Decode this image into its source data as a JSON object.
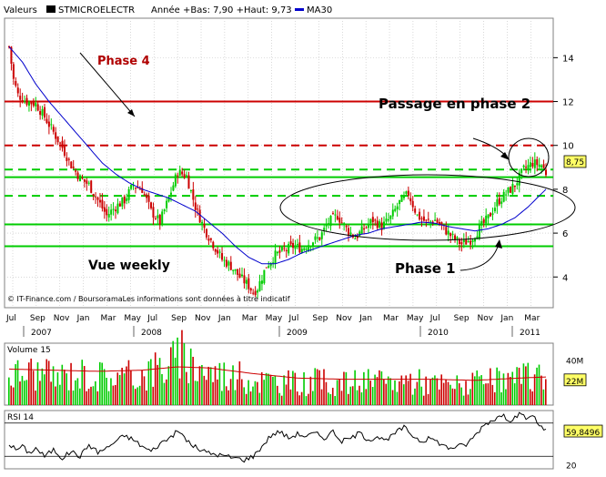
{
  "header": {
    "prefix": "Valeurs",
    "ticker": "STMICROELECTR",
    "stats": "Année +Bas: 7,90 +Haut: 9,73",
    "ma_label": "MA30"
  },
  "footer_note": "© IT-Finance.com / BoursoramaLes informations sont données à titre indicatif",
  "annotations": {
    "phase4": "Phase 4",
    "passage": "Passage en phase 2",
    "vue": "Vue weekly",
    "phase1": "Phase 1"
  },
  "last_price_label": "8,75",
  "colors": {
    "up": "#00cc00",
    "down": "#cc0000",
    "ma": "#0000cc",
    "frame": "#000000",
    "grid": "#c0c0c0",
    "background": "#ffffff"
  },
  "chart_data": [
    {
      "type": "candlestick",
      "title": "STMICROELECTR",
      "ylim": [
        2.6,
        15.8
      ],
      "y_ticks": [
        4,
        6,
        8,
        10,
        12,
        14
      ],
      "y_tick_labels": [
        "4",
        "6",
        "8",
        "10",
        "12",
        "14"
      ],
      "month_labels": [
        "Jul",
        "Sep",
        "Nov",
        "Jan",
        "Mar",
        "May",
        "Jul",
        "Sep",
        "Nov",
        "Jan",
        "Mar",
        "May",
        "Jul",
        "Sep",
        "Nov",
        "Jan",
        "Mar",
        "May",
        "Jul",
        "Sep",
        "Nov",
        "Jan",
        "Mar"
      ],
      "year_labels": [
        "2007",
        "2008",
        "2009",
        "2010",
        "2011"
      ],
      "close_path": [
        [
          0,
          14.5
        ],
        [
          2,
          13.0
        ],
        [
          4,
          12.3
        ],
        [
          8,
          12.0
        ],
        [
          12,
          11.9
        ],
        [
          16,
          11.3
        ],
        [
          20,
          10.6
        ],
        [
          24,
          9.9
        ],
        [
          28,
          9.1
        ],
        [
          32,
          8.5
        ],
        [
          36,
          8.2
        ],
        [
          40,
          7.5
        ],
        [
          44,
          6.8
        ],
        [
          48,
          7.2
        ],
        [
          52,
          7.5
        ],
        [
          56,
          8.2
        ],
        [
          60,
          8.0
        ],
        [
          64,
          7.0
        ],
        [
          68,
          6.5
        ],
        [
          72,
          7.6
        ],
        [
          76,
          8.8
        ],
        [
          80,
          8.6
        ],
        [
          84,
          7.2
        ],
        [
          88,
          6.2
        ],
        [
          92,
          5.5
        ],
        [
          96,
          4.8
        ],
        [
          100,
          4.5
        ],
        [
          104,
          4.0
        ],
        [
          108,
          3.6
        ],
        [
          110,
          3.3
        ],
        [
          112,
          3.5
        ],
        [
          116,
          4.5
        ],
        [
          120,
          5.0
        ],
        [
          124,
          5.2
        ],
        [
          128,
          5.4
        ],
        [
          132,
          5.3
        ],
        [
          136,
          5.6
        ],
        [
          140,
          5.8
        ],
        [
          144,
          6.5
        ],
        [
          148,
          6.8
        ],
        [
          152,
          6.2
        ],
        [
          156,
          5.8
        ],
        [
          160,
          6.2
        ],
        [
          164,
          6.6
        ],
        [
          168,
          6.3
        ],
        [
          172,
          6.7
        ],
        [
          176,
          7.4
        ],
        [
          180,
          7.8
        ],
        [
          184,
          6.8
        ],
        [
          188,
          6.5
        ],
        [
          192,
          6.6
        ],
        [
          196,
          6.2
        ],
        [
          200,
          5.8
        ],
        [
          204,
          5.5
        ],
        [
          208,
          5.7
        ],
        [
          212,
          6.2
        ],
        [
          216,
          6.7
        ],
        [
          220,
          7.4
        ],
        [
          224,
          7.8
        ],
        [
          228,
          8.2
        ],
        [
          232,
          8.9
        ],
        [
          236,
          9.2
        ],
        [
          240,
          9.1
        ],
        [
          242,
          8.75
        ]
      ],
      "ma30_path": [
        [
          0,
          14.5
        ],
        [
          6,
          13.8
        ],
        [
          12,
          12.8
        ],
        [
          18,
          12.0
        ],
        [
          24,
          11.3
        ],
        [
          30,
          10.6
        ],
        [
          36,
          9.9
        ],
        [
          42,
          9.2
        ],
        [
          48,
          8.7
        ],
        [
          54,
          8.3
        ],
        [
          60,
          8.0
        ],
        [
          66,
          7.8
        ],
        [
          72,
          7.6
        ],
        [
          78,
          7.3
        ],
        [
          84,
          7.0
        ],
        [
          90,
          6.5
        ],
        [
          96,
          6.0
        ],
        [
          102,
          5.4
        ],
        [
          108,
          4.9
        ],
        [
          114,
          4.6
        ],
        [
          120,
          4.6
        ],
        [
          126,
          4.8
        ],
        [
          132,
          5.1
        ],
        [
          138,
          5.3
        ],
        [
          144,
          5.5
        ],
        [
          150,
          5.7
        ],
        [
          156,
          5.9
        ],
        [
          162,
          6.0
        ],
        [
          168,
          6.2
        ],
        [
          174,
          6.3
        ],
        [
          180,
          6.4
        ],
        [
          186,
          6.5
        ],
        [
          192,
          6.45
        ],
        [
          198,
          6.3
        ],
        [
          204,
          6.2
        ],
        [
          210,
          6.1
        ],
        [
          216,
          6.2
        ],
        [
          222,
          6.4
        ],
        [
          228,
          6.7
        ],
        [
          234,
          7.2
        ],
        [
          240,
          7.8
        ],
        [
          242,
          8.0
        ]
      ],
      "horizontal_levels": [
        {
          "value": 12.0,
          "color": "#cc0000",
          "dashed": false
        },
        {
          "value": 10.0,
          "color": "#cc0000",
          "dashed": true
        },
        {
          "value": 8.9,
          "color": "#00cc00",
          "dashed": true
        },
        {
          "value": 8.55,
          "color": "#00cc00",
          "dashed": false
        },
        {
          "value": 7.7,
          "color": "#00cc00",
          "dashed": true
        },
        {
          "value": 6.4,
          "color": "#00cc00",
          "dashed": false
        },
        {
          "value": 5.4,
          "color": "#00cc00",
          "dashed": false
        }
      ],
      "last": 8.75
    },
    {
      "type": "bar",
      "title": "Volume 15",
      "ylim": [
        0,
        55
      ],
      "y_tick_labels": [
        "40M",
        "22M"
      ],
      "y_ticks": [
        40,
        22
      ],
      "unit": "M",
      "volume_path": [
        [
          0,
          30
        ],
        [
          10,
          34
        ],
        [
          20,
          28
        ],
        [
          30,
          32
        ],
        [
          40,
          30
        ],
        [
          50,
          28
        ],
        [
          60,
          32
        ],
        [
          70,
          40
        ],
        [
          78,
          48
        ],
        [
          84,
          42
        ],
        [
          90,
          34
        ],
        [
          100,
          30
        ],
        [
          110,
          26
        ],
        [
          120,
          24
        ],
        [
          130,
          22
        ],
        [
          140,
          24
        ],
        [
          150,
          22
        ],
        [
          160,
          24
        ],
        [
          170,
          22
        ],
        [
          180,
          26
        ],
        [
          190,
          22
        ],
        [
          200,
          20
        ],
        [
          210,
          22
        ],
        [
          220,
          24
        ],
        [
          230,
          26
        ],
        [
          240,
          30
        ],
        [
          242,
          28
        ]
      ],
      "ma_path": [
        [
          0,
          32
        ],
        [
          20,
          31
        ],
        [
          40,
          30
        ],
        [
          60,
          31
        ],
        [
          76,
          34
        ],
        [
          90,
          33
        ],
        [
          110,
          28
        ],
        [
          130,
          24
        ],
        [
          150,
          23
        ],
        [
          170,
          23
        ],
        [
          190,
          23
        ],
        [
          210,
          22
        ],
        [
          230,
          24
        ],
        [
          242,
          25
        ]
      ],
      "last_label": "22M"
    },
    {
      "type": "line",
      "title": "RSI 14",
      "ylim": [
        15,
        85
      ],
      "y_ticks": [
        20
      ],
      "y_tick_labels": [
        "20"
      ],
      "reference_levels": [
        70,
        30
      ],
      "rsi_path": [
        [
          0,
          45
        ],
        [
          3,
          38
        ],
        [
          6,
          42
        ],
        [
          9,
          34
        ],
        [
          12,
          40
        ],
        [
          16,
          30
        ],
        [
          20,
          38
        ],
        [
          24,
          28
        ],
        [
          28,
          36
        ],
        [
          32,
          30
        ],
        [
          36,
          44
        ],
        [
          40,
          35
        ],
        [
          44,
          40
        ],
        [
          48,
          48
        ],
        [
          52,
          55
        ],
        [
          56,
          50
        ],
        [
          60,
          42
        ],
        [
          64,
          36
        ],
        [
          68,
          45
        ],
        [
          72,
          52
        ],
        [
          76,
          60
        ],
        [
          78,
          56
        ],
        [
          82,
          44
        ],
        [
          86,
          38
        ],
        [
          90,
          34
        ],
        [
          94,
          32
        ],
        [
          98,
          30
        ],
        [
          102,
          28
        ],
        [
          106,
          26
        ],
        [
          110,
          30
        ],
        [
          114,
          42
        ],
        [
          118,
          55
        ],
        [
          122,
          60
        ],
        [
          126,
          52
        ],
        [
          130,
          57
        ],
        [
          134,
          54
        ],
        [
          138,
          58
        ],
        [
          142,
          52
        ],
        [
          146,
          60
        ],
        [
          150,
          48
        ],
        [
          154,
          52
        ],
        [
          158,
          58
        ],
        [
          162,
          50
        ],
        [
          166,
          54
        ],
        [
          170,
          48
        ],
        [
          174,
          58
        ],
        [
          178,
          65
        ],
        [
          182,
          55
        ],
        [
          186,
          48
        ],
        [
          190,
          52
        ],
        [
          194,
          46
        ],
        [
          198,
          40
        ],
        [
          202,
          42
        ],
        [
          206,
          44
        ],
        [
          210,
          55
        ],
        [
          214,
          68
        ],
        [
          218,
          74
        ],
        [
          222,
          79
        ],
        [
          226,
          74
        ],
        [
          230,
          80
        ],
        [
          234,
          75
        ],
        [
          236,
          81
        ],
        [
          238,
          70
        ],
        [
          240,
          66
        ],
        [
          242,
          59.8
        ]
      ],
      "last_label": "59,8496"
    }
  ]
}
